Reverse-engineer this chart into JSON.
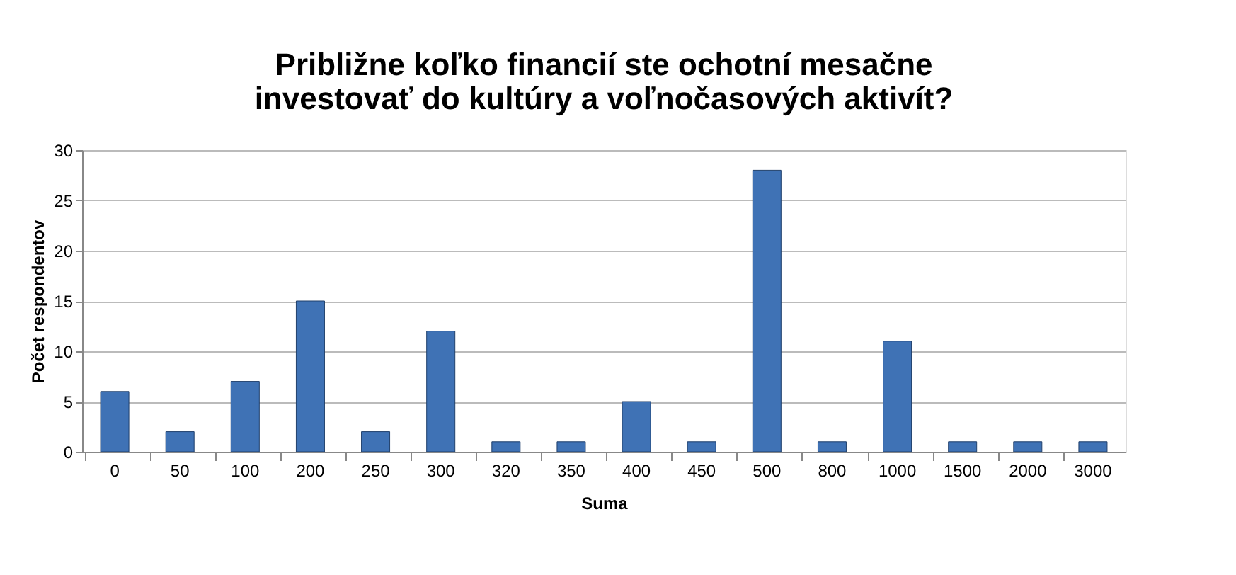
{
  "chart_data": {
    "type": "bar",
    "title": "Približne koľko financií ste ochotní mesačne\ninvestovať do kultúry a voľnočasových aktivít?",
    "xlabel": "Suma",
    "ylabel": "Počet respondentov",
    "categories": [
      "0",
      "50",
      "100",
      "200",
      "250",
      "300",
      "320",
      "350",
      "400",
      "450",
      "500",
      "800",
      "1000",
      "1500",
      "2000",
      "3000"
    ],
    "values": [
      6,
      2,
      7,
      15,
      2,
      12,
      1,
      1,
      5,
      1,
      28,
      1,
      11,
      1,
      1,
      1
    ],
    "color": "#3f72b5",
    "ylim": [
      0,
      30
    ],
    "yticks": [
      0,
      5,
      10,
      15,
      20,
      25,
      30
    ],
    "grid": "y"
  }
}
